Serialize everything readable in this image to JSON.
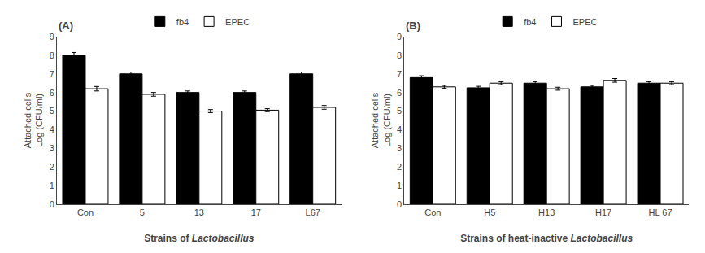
{
  "chart_data": [
    {
      "type": "bar",
      "annotations": [
        "(A)"
      ],
      "categories": [
        "Con",
        "5",
        "13",
        "17",
        "L67"
      ],
      "series": [
        {
          "name": "fb4",
          "color": "#000000",
          "values": [
            8.0,
            7.0,
            6.0,
            6.0,
            7.0
          ],
          "errors": [
            0.15,
            0.1,
            0.08,
            0.08,
            0.1
          ]
        },
        {
          "name": "EPEC",
          "color": "#ffffff",
          "values": [
            6.2,
            5.9,
            5.0,
            5.05,
            5.2
          ],
          "errors": [
            0.12,
            0.1,
            0.08,
            0.08,
            0.1
          ]
        }
      ],
      "xlabel": "Strains of Lactobacillus",
      "ylabel": "Attached cells\nLog (CFU/ml)",
      "ylim": [
        0,
        9
      ],
      "yticks": [
        0,
        1,
        2,
        3,
        4,
        5,
        6,
        7,
        8,
        9
      ],
      "grid": false,
      "legend": "top"
    },
    {
      "type": "bar",
      "annotations": [
        "(B)"
      ],
      "categories": [
        "Con",
        "H5",
        "H13",
        "H17",
        "HL 67"
      ],
      "series": [
        {
          "name": "fb4",
          "color": "#000000",
          "values": [
            6.8,
            6.25,
            6.5,
            6.3,
            6.5
          ],
          "errors": [
            0.1,
            0.08,
            0.08,
            0.08,
            0.08
          ]
        },
        {
          "name": "EPEC",
          "color": "#ffffff",
          "values": [
            6.3,
            6.5,
            6.2,
            6.65,
            6.5
          ],
          "errors": [
            0.08,
            0.08,
            0.08,
            0.1,
            0.08
          ]
        }
      ],
      "xlabel": "Strains of heat-inactive Lactobacillus",
      "ylabel": "Attached cells\nLog (CFU/ml)",
      "ylim": [
        0,
        9
      ],
      "yticks": [
        0,
        1,
        2,
        3,
        4,
        5,
        6,
        7,
        8,
        9
      ],
      "grid": false,
      "legend": "top"
    }
  ]
}
